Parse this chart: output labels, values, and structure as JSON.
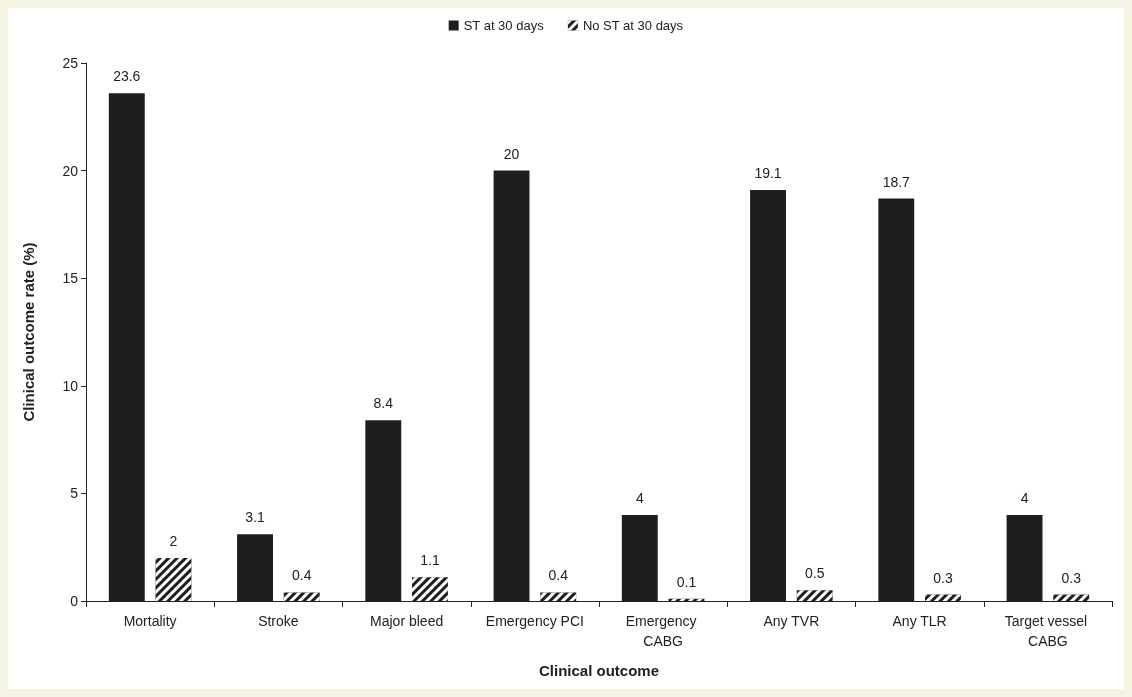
{
  "chart_data": {
    "type": "bar",
    "xlabel": "Clinical outcome",
    "ylabel": "Clinical outcome rate (%)",
    "categories": [
      "Mortality",
      "Stroke",
      "Major bleed",
      "Emergency PCI",
      "Emergency CABG",
      "Any TVR",
      "Any TLR",
      "Target vessel CABG"
    ],
    "series": [
      {
        "name": "ST at 30 days",
        "color": "#1e1e1e",
        "values": [
          23.6,
          3.1,
          8.4,
          20,
          4,
          19.1,
          18.7,
          4
        ]
      },
      {
        "name": "No ST at 30 days",
        "color": "#1e1e1e",
        "values": [
          2,
          0.4,
          1.1,
          0.4,
          0.1,
          0.5,
          0.3,
          0.3
        ]
      }
    ],
    "ylim": [
      0,
      25
    ],
    "yticks": [
      0,
      5,
      10,
      15,
      20,
      25
    ],
    "grid": false,
    "legend": "top",
    "data_labels": true
  }
}
